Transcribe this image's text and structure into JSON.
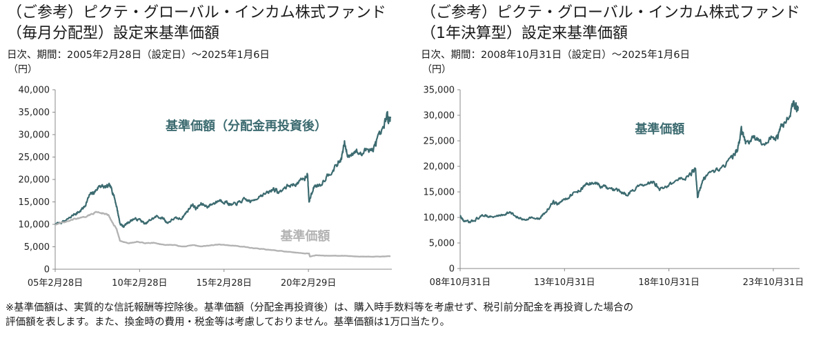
{
  "colors": {
    "reinvested": "#3c6b70",
    "nav": "#b3b3b3",
    "axis": "#888888"
  },
  "footnote": {
    "line1": "※基準価額は、実質的な信託報酬等控除後。基準価額（分配金再投資後）は、購入時手数料等を考慮せず、税引前分配金を再投資した場合の",
    "line2": "評価額を表します。また、換金時の費用・税金等は考慮しておりません。基準価額は1万口当たり。"
  },
  "chart_data": [
    {
      "type": "line",
      "title_line1": "（ご参考）ピクテ・グローバル・インカム株式ファンド",
      "title_line2": "（毎月分配型）設定来基準価額",
      "period": "日次、期間：2005年2月28日（設定日）～2025年1月6日",
      "ylabel": "（円）",
      "ylim": [
        0,
        40000
      ],
      "yticks": [
        0,
        5000,
        10000,
        15000,
        20000,
        25000,
        30000,
        35000,
        40000
      ],
      "ytick_labels": [
        "0",
        "5,000",
        "10,000",
        "15,000",
        "20,000",
        "25,000",
        "30,000",
        "35,000",
        "40,000"
      ],
      "xlim": [
        2005.16,
        2025.02
      ],
      "xticks": [
        2005.16,
        2010.16,
        2015.16,
        2020.16
      ],
      "xtick_labels": [
        "05年2月28日",
        "10年2月28日",
        "15年2月28日",
        "20年2月29日"
      ],
      "series": [
        {
          "name": "基準価額（分配金再投資後）",
          "color": "#3c6b70",
          "points": [
            [
              2005.16,
              10000
            ],
            [
              2005.8,
              10800
            ],
            [
              2006.3,
              12300
            ],
            [
              2006.6,
              12800
            ],
            [
              2006.9,
              14000
            ],
            [
              2007.2,
              16500
            ],
            [
              2007.5,
              17200
            ],
            [
              2007.8,
              18700
            ],
            [
              2008.1,
              18200
            ],
            [
              2008.4,
              18500
            ],
            [
              2008.6,
              17000
            ],
            [
              2008.8,
              14000
            ],
            [
              2009.0,
              10200
            ],
            [
              2009.2,
              9500
            ],
            [
              2009.5,
              10500
            ],
            [
              2009.8,
              11200
            ],
            [
              2010.2,
              11000
            ],
            [
              2010.5,
              10000
            ],
            [
              2010.8,
              11000
            ],
            [
              2011.2,
              11800
            ],
            [
              2011.6,
              11200
            ],
            [
              2011.8,
              10300
            ],
            [
              2012.2,
              11300
            ],
            [
              2012.6,
              11200
            ],
            [
              2012.9,
              12500
            ],
            [
              2013.3,
              14500
            ],
            [
              2013.5,
              13500
            ],
            [
              2013.8,
              14500
            ],
            [
              2014.2,
              14000
            ],
            [
              2014.6,
              14800
            ],
            [
              2014.9,
              15400
            ],
            [
              2015.3,
              15000
            ],
            [
              2015.6,
              14200
            ],
            [
              2016.0,
              14800
            ],
            [
              2016.4,
              15500
            ],
            [
              2016.8,
              15000
            ],
            [
              2017.3,
              16500
            ],
            [
              2017.8,
              17000
            ],
            [
              2018.1,
              18000
            ],
            [
              2018.4,
              17000
            ],
            [
              2018.9,
              18500
            ],
            [
              2019.4,
              19000
            ],
            [
              2019.9,
              20000
            ],
            [
              2020.1,
              21500
            ],
            [
              2020.2,
              15000
            ],
            [
              2020.5,
              18500
            ],
            [
              2020.9,
              19000
            ],
            [
              2021.3,
              21000
            ],
            [
              2021.8,
              23000
            ],
            [
              2022.1,
              24500
            ],
            [
              2022.3,
              28000
            ],
            [
              2022.5,
              25000
            ],
            [
              2022.9,
              26500
            ],
            [
              2023.3,
              25500
            ],
            [
              2023.7,
              27000
            ],
            [
              2024.0,
              26500
            ],
            [
              2024.2,
              28500
            ],
            [
              2024.6,
              31000
            ],
            [
              2024.8,
              34500
            ],
            [
              2024.9,
              33500
            ],
            [
              2025.02,
              34000
            ]
          ]
        },
        {
          "name": "基準価額",
          "color": "#b3b3b3",
          "points": [
            [
              2005.16,
              10000
            ],
            [
              2005.8,
              10500
            ],
            [
              2006.3,
              11200
            ],
            [
              2006.8,
              11500
            ],
            [
              2007.3,
              12200
            ],
            [
              2007.6,
              12800
            ],
            [
              2008.0,
              12500
            ],
            [
              2008.3,
              12100
            ],
            [
              2008.6,
              10000
            ],
            [
              2008.8,
              9000
            ],
            [
              2009.0,
              6300
            ],
            [
              2009.5,
              5800
            ],
            [
              2010.0,
              6100
            ],
            [
              2010.5,
              5800
            ],
            [
              2011.0,
              5900
            ],
            [
              2011.6,
              5400
            ],
            [
              2012.2,
              5400
            ],
            [
              2012.7,
              5000
            ],
            [
              2013.3,
              5400
            ],
            [
              2013.8,
              5100
            ],
            [
              2014.3,
              5300
            ],
            [
              2014.8,
              5500
            ],
            [
              2015.3,
              5400
            ],
            [
              2015.8,
              5200
            ],
            [
              2016.4,
              5000
            ],
            [
              2016.9,
              4700
            ],
            [
              2017.4,
              4500
            ],
            [
              2017.9,
              4300
            ],
            [
              2018.4,
              4100
            ],
            [
              2018.9,
              3900
            ],
            [
              2019.4,
              3700
            ],
            [
              2019.9,
              3500
            ],
            [
              2020.2,
              3500
            ],
            [
              2020.25,
              2800
            ],
            [
              2020.6,
              3100
            ],
            [
              2021.2,
              3000
            ],
            [
              2021.8,
              3000
            ],
            [
              2022.3,
              3000
            ],
            [
              2022.8,
              2900
            ],
            [
              2023.4,
              2800
            ],
            [
              2023.9,
              2800
            ],
            [
              2024.4,
              2800
            ],
            [
              2025.02,
              2900
            ]
          ]
        }
      ],
      "annotations": [
        {
          "text": "基準価額（分配金再投資後）",
          "series": 0,
          "x": 2011.7,
          "y": 31000
        },
        {
          "text": "基準価額",
          "series": 1,
          "x": 2018.5,
          "y": 6500
        }
      ]
    },
    {
      "type": "line",
      "title_line1": "（ご参考）ピクテ・グローバル・インカム株式ファンド",
      "title_line2": "（1年決算型）設定来基準価額",
      "period": "日次、期間：2008年10月31日（設定日）～2025年1月6日",
      "ylabel": "（円）",
      "ylim": [
        0,
        35000
      ],
      "yticks": [
        0,
        5000,
        10000,
        15000,
        20000,
        25000,
        30000,
        35000
      ],
      "ytick_labels": [
        "0",
        "5,000",
        "10,000",
        "15,000",
        "20,000",
        "25,000",
        "30,000",
        "35,000"
      ],
      "xlim": [
        2008.83,
        2025.02
      ],
      "xticks": [
        2008.83,
        2013.83,
        2018.83,
        2023.83
      ],
      "xtick_labels": [
        "08年10月31日",
        "13年10月31日",
        "18年10月31日",
        "23年10月31日"
      ],
      "series": [
        {
          "name": "基準価額",
          "color": "#3c6b70",
          "points": [
            [
              2008.83,
              10300
            ],
            [
              2009.0,
              9300
            ],
            [
              2009.3,
              9000
            ],
            [
              2009.6,
              9700
            ],
            [
              2010.0,
              10500
            ],
            [
              2010.4,
              10000
            ],
            [
              2010.8,
              10500
            ],
            [
              2011.2,
              11000
            ],
            [
              2011.5,
              10200
            ],
            [
              2011.8,
              9500
            ],
            [
              2012.2,
              10000
            ],
            [
              2012.6,
              9600
            ],
            [
              2012.9,
              11000
            ],
            [
              2013.3,
              13000
            ],
            [
              2013.5,
              12500
            ],
            [
              2013.8,
              13500
            ],
            [
              2014.2,
              14500
            ],
            [
              2014.6,
              15500
            ],
            [
              2014.9,
              16500
            ],
            [
              2015.3,
              16800
            ],
            [
              2015.6,
              16000
            ],
            [
              2016.0,
              15500
            ],
            [
              2016.4,
              15200
            ],
            [
              2016.8,
              14500
            ],
            [
              2017.3,
              16000
            ],
            [
              2017.8,
              16200
            ],
            [
              2018.1,
              17000
            ],
            [
              2018.4,
              15500
            ],
            [
              2018.9,
              16500
            ],
            [
              2019.4,
              17500
            ],
            [
              2019.9,
              18500
            ],
            [
              2020.1,
              19500
            ],
            [
              2020.2,
              14200
            ],
            [
              2020.5,
              17500
            ],
            [
              2020.9,
              18500
            ],
            [
              2021.3,
              19500
            ],
            [
              2021.8,
              21500
            ],
            [
              2022.1,
              23000
            ],
            [
              2022.3,
              27000
            ],
            [
              2022.5,
              24500
            ],
            [
              2022.9,
              25500
            ],
            [
              2023.3,
              24500
            ],
            [
              2023.7,
              25500
            ],
            [
              2024.0,
              25500
            ],
            [
              2024.2,
              27500
            ],
            [
              2024.6,
              30500
            ],
            [
              2024.8,
              32500
            ],
            [
              2024.9,
              31500
            ],
            [
              2025.02,
              31700
            ]
          ]
        }
      ],
      "annotations": [
        {
          "text": "基準価額",
          "series": 0,
          "x": 2017.2,
          "y": 26500
        }
      ]
    }
  ]
}
